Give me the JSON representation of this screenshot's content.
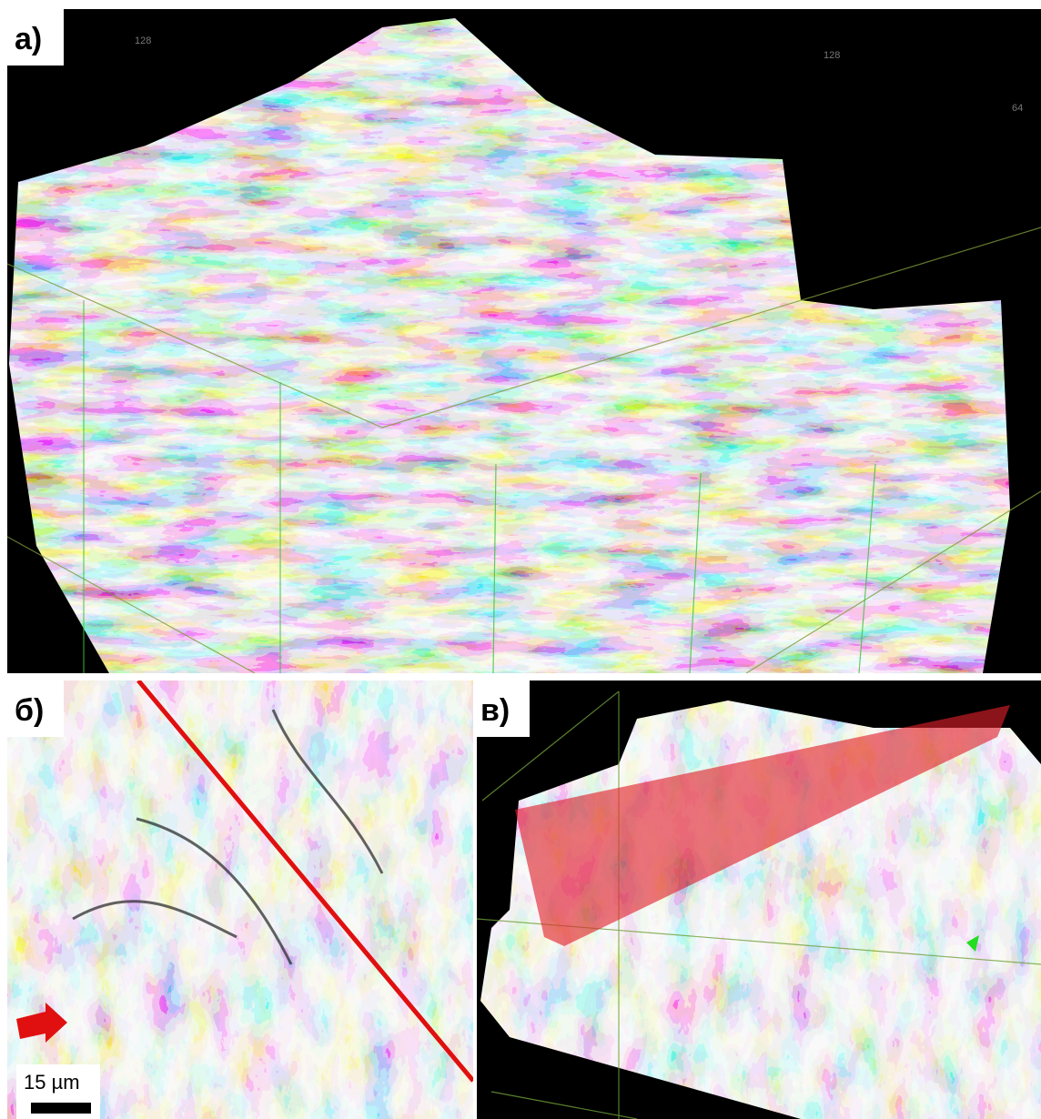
{
  "panels": [
    {
      "label": "а)",
      "axis_labels": [
        "128",
        "128",
        "64"
      ]
    },
    {
      "label": "б)",
      "scale_bar": "15 µm"
    },
    {
      "label": "в)"
    }
  ]
}
